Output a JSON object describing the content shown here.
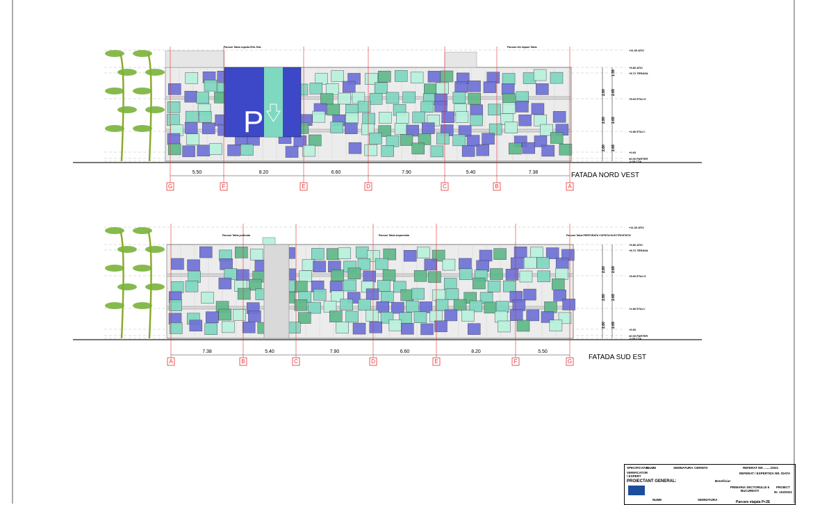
{
  "elevations": [
    {
      "title": "FATADA  NORD VEST",
      "axes": [
        "G",
        "F",
        "E",
        "D",
        "C",
        "B",
        "A"
      ],
      "spans": [
        "5.50",
        "8.20",
        "6.60",
        "7.90",
        "5.40",
        "7.38"
      ],
      "annotations": [
        "Panouri Tabla vopsita IPAL RAL",
        "Panouri din impact Tabla"
      ],
      "parking_sign": "P"
    },
    {
      "title": "FATADA SUD EST",
      "axes": [
        "A",
        "B",
        "C",
        "D",
        "E",
        "F",
        "G"
      ],
      "spans": [
        "7.38",
        "5.40",
        "7.90",
        "6.60",
        "8.20",
        "5.50"
      ],
      "annotations": [
        "Panouri Tabla perforata",
        "Panouri Tabla amprentata",
        "Panouri Tabla PERFORATA VOPSITA ELECTROSTATIC"
      ]
    }
  ],
  "levels": [
    "+11.30 ATIC",
    "+9.80 ATIC",
    "+8.72 TERASA",
    "+5.60 ETAJ II",
    "+2.80 ETAJ I",
    "+0.60",
    "±0.00 PARTER",
    "-0.05 CTA"
  ],
  "level_dims": [
    "1.35",
    "2.80",
    "2.65",
    "2.80",
    "2.65",
    "2.80",
    "2.65"
  ],
  "title_block": {
    "specificatie": "SPECIFICATIE",
    "nume": "NUME",
    "semnatura": "SEMNATURA",
    "cerinta": "CERINTA",
    "referat": "REFERAT  NR. ......./2021",
    "verificator": "VERIFICATOR / EXPERT",
    "referat_expertiza": "REFERAT / EXPERTIZA NR. /DATA",
    "proiectant": "PROIECTANT GENERAL:",
    "beneficiar": "Beneficiar:",
    "beneficiar_name": "PRIMARIA SECTORULUI 6 BUCURESTI",
    "proiect": "PROIECT",
    "proiect_nr": "Nr. 104/2021",
    "nume2": "NUME",
    "semnatura2": "SEMNATURA",
    "project_title": "Parcare etajata  P+2E"
  },
  "colors": {
    "blue": "#6f72d6",
    "teal": "#7fd8c0",
    "green": "#5fb88a",
    "mint": "#b8f2dc",
    "axis": "#e53030",
    "dark_blue": "#3c48c8"
  }
}
